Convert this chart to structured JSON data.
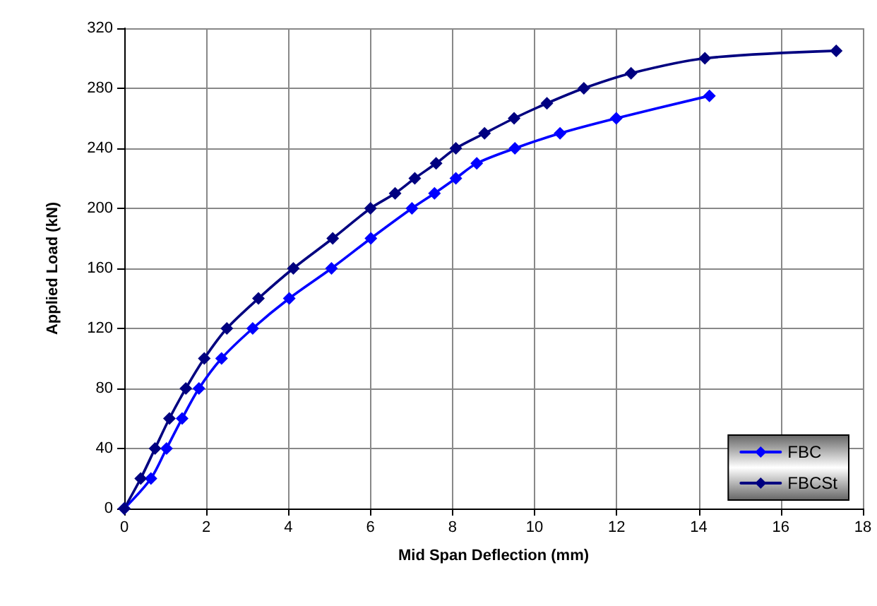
{
  "chart_data": {
    "type": "line",
    "xlabel": "Mid Span Deflection (mm)",
    "ylabel": "Applied Load (kN)",
    "xlim": [
      0,
      18
    ],
    "xticks": [
      0,
      2,
      4,
      6,
      8,
      10,
      12,
      14,
      16,
      18
    ],
    "ylim": [
      0,
      320
    ],
    "yticks": [
      0,
      40,
      80,
      120,
      160,
      200,
      240,
      280,
      320
    ],
    "grid": true,
    "legend": "bottom right",
    "marker": "diamond",
    "line_style": "solid",
    "series": [
      {
        "name": "FBC",
        "color": "#0000ff",
        "x": [
          0,
          0.65,
          1.03,
          1.41,
          1.82,
          2.37,
          3.13,
          4.02,
          5.05,
          6.01,
          7.01,
          7.56,
          8.08,
          8.59,
          9.52,
          10.62,
          11.99,
          14.26
        ],
        "values": [
          0,
          20,
          40,
          60,
          80,
          100,
          120,
          140,
          160,
          180,
          200,
          210,
          220,
          230,
          240,
          250,
          260,
          275
        ]
      },
      {
        "name": "FBCSt",
        "color": "#000080",
        "x": [
          0,
          0.4,
          0.75,
          1.1,
          1.5,
          1.95,
          2.5,
          3.27,
          4.12,
          5.08,
          6.0,
          6.6,
          7.08,
          7.6,
          8.08,
          8.78,
          9.5,
          10.3,
          11.2,
          12.35,
          14.15,
          17.35
        ],
        "values": [
          0,
          20,
          40,
          60,
          80,
          100,
          120,
          140,
          160,
          180,
          200,
          210,
          220,
          230,
          240,
          250,
          260,
          270,
          280,
          290,
          300,
          305
        ]
      }
    ]
  }
}
